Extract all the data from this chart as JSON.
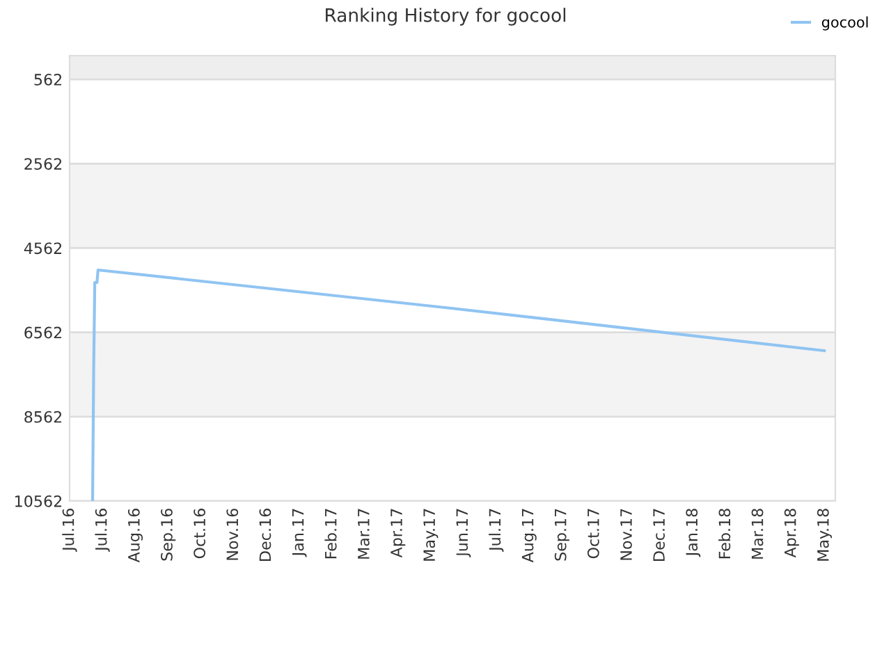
{
  "chart_data": {
    "type": "line",
    "title": "Ranking History for gocool",
    "series": [
      {
        "name": "gocool",
        "color": "#90c4f2",
        "x": [
          "2016-07-22",
          "2016-07-23",
          "2016-07-24",
          "2016-07-26",
          "2016-07-27",
          "2017-06-15",
          "2018-05-22"
        ],
        "values": [
          10562,
          7460,
          5380,
          5380,
          5083,
          5990,
          6998
        ]
      }
    ],
    "xlim": [
      "2016-07-01",
      "2018-06-01"
    ],
    "xticks": [
      {
        "value": "2016-07-01",
        "label": "Jul.16"
      },
      {
        "value": "2016-07-31",
        "label": "Jul.16"
      },
      {
        "value": "2016-08-30",
        "label": "Aug.16"
      },
      {
        "value": "2016-09-29",
        "label": "Sep.16"
      },
      {
        "value": "2016-10-29",
        "label": "Oct.16"
      },
      {
        "value": "2016-11-28",
        "label": "Nov.16"
      },
      {
        "value": "2016-12-28",
        "label": "Dec.16"
      },
      {
        "value": "2017-01-27",
        "label": "Jan.17"
      },
      {
        "value": "2017-02-26",
        "label": "Feb.17"
      },
      {
        "value": "2017-03-28",
        "label": "Mar.17"
      },
      {
        "value": "2017-04-27",
        "label": "Apr.17"
      },
      {
        "value": "2017-05-27",
        "label": "May.17"
      },
      {
        "value": "2017-06-26",
        "label": "Jun.17"
      },
      {
        "value": "2017-07-26",
        "label": "Jul.17"
      },
      {
        "value": "2017-08-25",
        "label": "Aug.17"
      },
      {
        "value": "2017-09-24",
        "label": "Sep.17"
      },
      {
        "value": "2017-10-24",
        "label": "Oct.17"
      },
      {
        "value": "2017-11-23",
        "label": "Nov.17"
      },
      {
        "value": "2017-12-23",
        "label": "Dec.17"
      },
      {
        "value": "2018-01-22",
        "label": "Jan.18"
      },
      {
        "value": "2018-02-21",
        "label": "Feb.18"
      },
      {
        "value": "2018-03-23",
        "label": "Mar.18"
      },
      {
        "value": "2018-04-22",
        "label": "Apr.18"
      },
      {
        "value": "2018-05-22",
        "label": "May.18"
      }
    ],
    "ylim": [
      10562,
      0
    ],
    "yticks": [
      562,
      2562,
      4562,
      6562,
      8562,
      10562
    ],
    "bands": [
      {
        "axis": "y",
        "from": 0,
        "to": 562,
        "color": "#eeeeee"
      },
      {
        "axis": "y",
        "from": 2562,
        "to": 4562,
        "color": "#f3f3f3"
      },
      {
        "axis": "y",
        "from": 6562,
        "to": 8562,
        "color": "#f3f3f3"
      }
    ],
    "grid": "y",
    "legend": "top right",
    "marker": "none",
    "line_style": "solid"
  }
}
